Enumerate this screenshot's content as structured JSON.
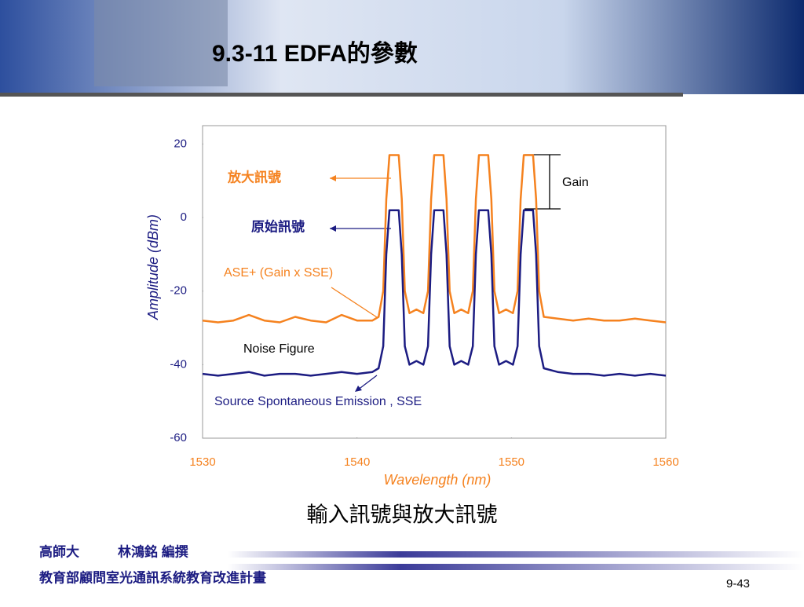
{
  "slide": {
    "title": "9.3-11 EDFA的參數",
    "caption": "輸入訊號與放大訊號",
    "footer": {
      "school": "高師大",
      "author": "林鴻銘 編撰",
      "program": "教育部顧問室光通訊系統教育改進計畫",
      "page": "9-43"
    }
  },
  "chart_data": {
    "type": "line",
    "x_label": "Wavelength (nm)",
    "y_label": "Amplitude (dBm)",
    "xlim": [
      1530,
      1560
    ],
    "xticks": [
      1530,
      1540,
      1550,
      1560
    ],
    "ylim": [
      -60,
      25
    ],
    "yticks": [
      20,
      0,
      -20,
      -40,
      -60
    ],
    "grid": false,
    "annotations": [
      "放大訊號",
      "原始訊號",
      "ASE+ (Gain x SSE)",
      "Noise Figure",
      "Source Spontaneous Emission , SSE",
      "Gain"
    ],
    "x": [
      1530,
      1531,
      1532,
      1533,
      1534,
      1535,
      1536,
      1537,
      1538,
      1539,
      1540,
      1541,
      1541.4,
      1541.7,
      1541.9,
      1542.1,
      1542.7,
      1542.9,
      1543.1,
      1543.4,
      1543.85,
      1544.3,
      1544.6,
      1544.8,
      1545.0,
      1545.6,
      1545.8,
      1546.0,
      1546.3,
      1546.75,
      1547.2,
      1547.5,
      1547.7,
      1547.9,
      1548.5,
      1548.7,
      1548.9,
      1549.2,
      1549.65,
      1550.1,
      1550.4,
      1550.6,
      1550.8,
      1551.4,
      1551.6,
      1551.8,
      1552.1,
      1553,
      1554,
      1555,
      1556,
      1557,
      1558,
      1559,
      1560
    ],
    "series": [
      {
        "color": "#f5821f",
        "values": [
          -28,
          -28.5,
          -28,
          -26.5,
          -28,
          -28.5,
          -27,
          -28,
          -28.5,
          -26.5,
          -28,
          -28,
          -27,
          -20,
          5,
          17,
          17,
          5,
          -20,
          -26,
          -25,
          -26,
          -20,
          5,
          17,
          17,
          5,
          -20,
          -26,
          -25,
          -26,
          -20,
          5,
          17,
          17,
          5,
          -20,
          -26,
          -25,
          -26,
          -20,
          5,
          17,
          17,
          5,
          -20,
          -27,
          -27.5,
          -28,
          -27.5,
          -28,
          -28,
          -27.5,
          -28,
          -28.5
        ]
      },
      {
        "color": "#1c1c82",
        "values": [
          -42.5,
          -43,
          -42.5,
          -42,
          -43,
          -42.5,
          -42.5,
          -43,
          -42.5,
          -42,
          -42.5,
          -42,
          -41,
          -35,
          -10,
          2,
          2,
          -10,
          -35,
          -40,
          -39,
          -40,
          -35,
          -10,
          2,
          2,
          -10,
          -35,
          -40,
          -39,
          -40,
          -35,
          -10,
          2,
          2,
          -10,
          -35,
          -40,
          -39,
          -40,
          -35,
          -10,
          2,
          2,
          -10,
          -35,
          -41,
          -42,
          -42.5,
          -42.5,
          -43,
          -42.5,
          -43,
          -42.5,
          -43
        ]
      }
    ]
  }
}
